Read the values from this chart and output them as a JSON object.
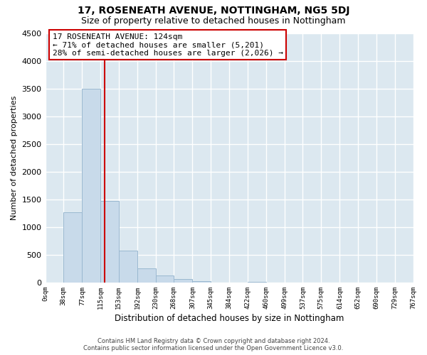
{
  "title": "17, ROSENEATH AVENUE, NOTTINGHAM, NG5 5DJ",
  "subtitle": "Size of property relative to detached houses in Nottingham",
  "xlabel": "Distribution of detached houses by size in Nottingham",
  "ylabel": "Number of detached properties",
  "bar_edges": [
    0,
    38,
    77,
    115,
    153,
    192,
    230,
    268,
    307,
    345,
    384,
    422,
    460,
    499,
    537,
    575,
    614,
    652,
    690,
    729,
    767
  ],
  "bar_heights": [
    0,
    1270,
    3500,
    1470,
    580,
    250,
    130,
    65,
    30,
    0,
    0,
    15,
    0,
    0,
    0,
    0,
    0,
    0,
    0,
    0
  ],
  "bar_color": "#c8daea",
  "bar_edgecolor": "#9ab8d0",
  "vline_x": 124,
  "vline_color": "#cc0000",
  "ylim": [
    0,
    4500
  ],
  "yticks": [
    0,
    500,
    1000,
    1500,
    2000,
    2500,
    3000,
    3500,
    4000,
    4500
  ],
  "tick_labels": [
    "0sqm",
    "38sqm",
    "77sqm",
    "115sqm",
    "153sqm",
    "192sqm",
    "230sqm",
    "268sqm",
    "307sqm",
    "345sqm",
    "384sqm",
    "422sqm",
    "460sqm",
    "499sqm",
    "537sqm",
    "575sqm",
    "614sqm",
    "652sqm",
    "690sqm",
    "729sqm",
    "767sqm"
  ],
  "annotation_title": "17 ROSENEATH AVENUE: 124sqm",
  "annotation_line1": "← 71% of detached houses are smaller (5,201)",
  "annotation_line2": "28% of semi-detached houses are larger (2,026) →",
  "annotation_box_color": "#ffffff",
  "annotation_box_edgecolor": "#cc0000",
  "footer1": "Contains HM Land Registry data © Crown copyright and database right 2024.",
  "footer2": "Contains public sector information licensed under the Open Government Licence v3.0.",
  "figure_bg": "#ffffff",
  "axes_bg": "#dce8f0",
  "grid_color": "#ffffff"
}
